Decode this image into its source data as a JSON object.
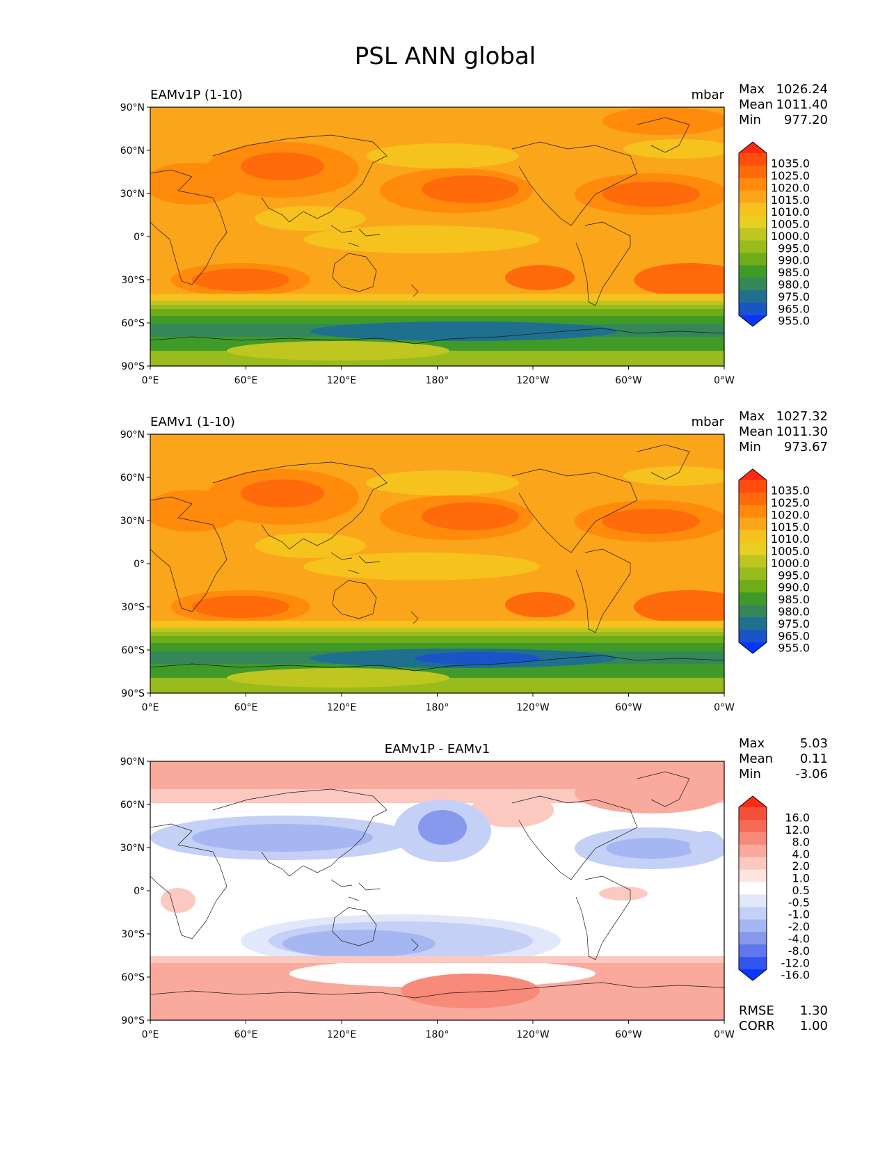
{
  "figure": {
    "title": "PSL ANN global"
  },
  "panels": [
    {
      "id": "test",
      "title_left": "EAMv1P (1-10)",
      "title_center": "",
      "units": "mbar",
      "stats": [
        {
          "label": "Max",
          "value": "1026.24"
        },
        {
          "label": "Mean",
          "value": "1011.40"
        },
        {
          "label": "Min",
          "value": "977.20"
        }
      ],
      "colorbar": {
        "labels": [
          "1035.0",
          "1025.0",
          "1020.0",
          "1015.0",
          "1010.0",
          "1005.0",
          "1000.0",
          "995.0",
          "990.0",
          "985.0",
          "980.0",
          "975.0",
          "965.0",
          "955.0"
        ],
        "colors": [
          "#ff2a10",
          "#ff4d0d",
          "#ff6a0a",
          "#ff8a0c",
          "#fba51a",
          "#f6c21e",
          "#e8cf22",
          "#bfc620",
          "#98bb1e",
          "#6fac1a",
          "#3f9a28",
          "#35875a",
          "#1f6f8f",
          "#1a55c8",
          "#0a35ff"
        ],
        "end_colors": {
          "top": "#ff2a10",
          "bottom": "#0a35ff"
        }
      },
      "map": "psl"
    },
    {
      "id": "ref",
      "title_left": "EAMv1 (1-10)",
      "title_center": "",
      "units": "mbar",
      "stats": [
        {
          "label": "Max",
          "value": "1027.32"
        },
        {
          "label": "Mean",
          "value": "1011.30"
        },
        {
          "label": "Min",
          "value": "973.67"
        }
      ],
      "colorbar": {
        "labels": [
          "1035.0",
          "1025.0",
          "1020.0",
          "1015.0",
          "1010.0",
          "1005.0",
          "1000.0",
          "995.0",
          "990.0",
          "985.0",
          "980.0",
          "975.0",
          "965.0",
          "955.0"
        ],
        "colors": [
          "#ff2a10",
          "#ff4d0d",
          "#ff6a0a",
          "#ff8a0c",
          "#fba51a",
          "#f6c21e",
          "#e8cf22",
          "#bfc620",
          "#98bb1e",
          "#6fac1a",
          "#3f9a28",
          "#35875a",
          "#1f6f8f",
          "#1a55c8",
          "#0a35ff"
        ],
        "end_colors": {
          "top": "#ff2a10",
          "bottom": "#0a35ff"
        }
      },
      "map": "psl"
    },
    {
      "id": "diff",
      "title_left": "",
      "title_center": "EAMv1P - EAMv1",
      "units": "",
      "stats": [
        {
          "label": "Max",
          "value": "5.03"
        },
        {
          "label": "Mean",
          "value": "0.11"
        },
        {
          "label": "Min",
          "value": "-3.06"
        }
      ],
      "colorbar": {
        "labels": [
          "16.0",
          "12.0",
          "8.0",
          "4.0",
          "2.0",
          "1.0",
          "0.5",
          "-0.5",
          "-1.0",
          "-2.0",
          "-4.0",
          "-8.0",
          "-12.0",
          "-16.0"
        ],
        "colors": [
          "#ff2a10",
          "#f2503a",
          "#f56a55",
          "#f78a78",
          "#f9aa9c",
          "#fbc9c0",
          "#fde4df",
          "#ffffff",
          "#e2e8fb",
          "#c5d0f7",
          "#a6b6f2",
          "#8799ec",
          "#5f77ea",
          "#3156f0",
          "#0a35ff"
        ],
        "end_colors": {
          "top": "#ff2a10",
          "bottom": "#0a35ff"
        }
      },
      "extra_stats": [
        {
          "label": "RMSE",
          "value": "1.30"
        },
        {
          "label": "CORR",
          "value": "1.00"
        }
      ],
      "map": "diff"
    }
  ],
  "axes": {
    "lat_ticks": [
      "90°N",
      "60°N",
      "30°N",
      "0°",
      "30°S",
      "60°S",
      "90°S"
    ],
    "lon_ticks": [
      "0°E",
      "60°E",
      "120°E",
      "180°",
      "120°W",
      "60°W",
      "0°W"
    ]
  },
  "map_colors": {
    "psl_base": "#fba51a",
    "psl_high": "#ff8a0c",
    "psl_higher": "#ff6a0a",
    "psl_mid": "#f6c21e",
    "psl_low1": "#bfc620",
    "psl_low2": "#98bb1e",
    "psl_low3": "#6fac1a",
    "psl_low4": "#3f9a28",
    "psl_low5": "#35875a",
    "psl_low6": "#1f6f8f",
    "diff_pos1": "#fbc9c0",
    "diff_pos2": "#f9aa9c",
    "diff_pos3": "#f78a78",
    "diff_neg1": "#e2e8fb",
    "diff_neg2": "#c5d0f7",
    "diff_neg3": "#a6b6f2",
    "diff_neg4": "#8799ec"
  }
}
